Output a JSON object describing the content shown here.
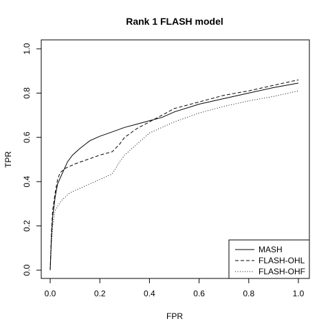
{
  "chart_data": {
    "type": "line",
    "title": "Rank 1 FLASH model",
    "xlabel": "FPR",
    "ylabel": "TPR",
    "xlim": [
      0,
      1
    ],
    "ylim": [
      0,
      1
    ],
    "xticks": [
      "0.0",
      "0.2",
      "0.4",
      "0.6",
      "0.8",
      "1.0"
    ],
    "yticks": [
      "0.0",
      "0.2",
      "0.4",
      "0.6",
      "0.8",
      "1.0"
    ],
    "grid": false,
    "legend_position": "bottom-right",
    "series": [
      {
        "name": "MASH",
        "line_style": "solid",
        "x": [
          0,
          0.005,
          0.01,
          0.02,
          0.03,
          0.05,
          0.07,
          0.09,
          0.12,
          0.16,
          0.2,
          0.25,
          0.3,
          0.35,
          0.4,
          0.45,
          0.5,
          0.6,
          0.7,
          0.8,
          0.9,
          1.0
        ],
        "y": [
          0,
          0.15,
          0.24,
          0.33,
          0.39,
          0.44,
          0.49,
          0.52,
          0.55,
          0.585,
          0.605,
          0.625,
          0.645,
          0.66,
          0.675,
          0.69,
          0.715,
          0.75,
          0.775,
          0.8,
          0.825,
          0.845
        ]
      },
      {
        "name": "FLASH-OHL",
        "line_style": "dashed",
        "x": [
          0,
          0.005,
          0.01,
          0.02,
          0.03,
          0.04,
          0.06,
          0.08,
          0.1,
          0.15,
          0.2,
          0.25,
          0.28,
          0.3,
          0.35,
          0.4,
          0.45,
          0.5,
          0.6,
          0.7,
          0.8,
          0.9,
          1.0
        ],
        "y": [
          0,
          0.17,
          0.27,
          0.35,
          0.41,
          0.44,
          0.46,
          0.47,
          0.48,
          0.5,
          0.52,
          0.535,
          0.57,
          0.6,
          0.64,
          0.67,
          0.7,
          0.73,
          0.76,
          0.79,
          0.81,
          0.835,
          0.86
        ]
      },
      {
        "name": "FLASH-OHF",
        "line_style": "dotted",
        "x": [
          0,
          0.005,
          0.01,
          0.02,
          0.03,
          0.05,
          0.08,
          0.1,
          0.15,
          0.2,
          0.25,
          0.28,
          0.3,
          0.35,
          0.4,
          0.5,
          0.6,
          0.7,
          0.8,
          0.9,
          1.0
        ],
        "y": [
          0,
          0.12,
          0.2,
          0.27,
          0.29,
          0.32,
          0.35,
          0.36,
          0.385,
          0.41,
          0.435,
          0.49,
          0.52,
          0.57,
          0.62,
          0.67,
          0.71,
          0.74,
          0.765,
          0.785,
          0.81
        ]
      }
    ]
  }
}
